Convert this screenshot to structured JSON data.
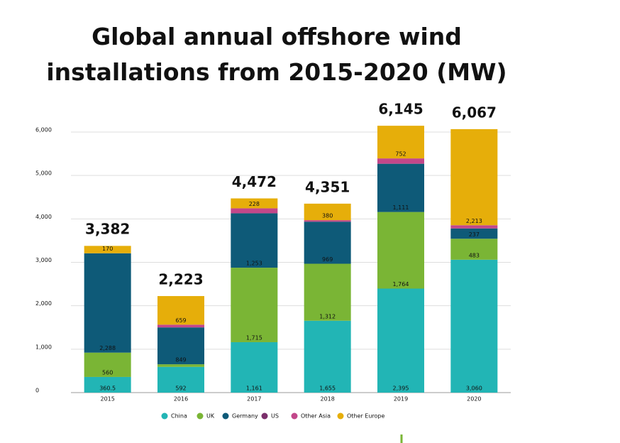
{
  "chart_data": {
    "type": "stacked_bar",
    "title": "Global annual offshore wind installations from 2015-2020 (MW)",
    "categories": [
      "2015",
      "2016",
      "2017",
      "2018",
      "2019",
      "2020"
    ],
    "series": [
      {
        "name": "China",
        "color": "#22b5b5",
        "values": [
          360.5,
          592,
          1161,
          1655,
          2395,
          3060
        ],
        "value_labels": [
          "360.5",
          "592",
          "1,161",
          "1,655",
          "2,395",
          "3,060"
        ]
      },
      {
        "name": "UK",
        "color": "#7ab535",
        "values": [
          560,
          60,
          1715,
          1312,
          1764,
          483
        ],
        "value_labels": [
          "560",
          null,
          "1,715",
          "1,312",
          "1,764",
          "483"
        ]
      },
      {
        "name": "Germany",
        "color": "#0e5a78",
        "values": [
          2288,
          849,
          1253,
          969,
          1111,
          237
        ],
        "value_labels": [
          "2,288",
          "849",
          "1,253",
          "969",
          "1,111",
          "237"
        ]
      },
      {
        "name": "US",
        "color": "#7b2f6b",
        "values": [
          null,
          null,
          null,
          null,
          null,
          null
        ]
      },
      {
        "name": "Other Asia",
        "color": "#c2478a",
        "values": [
          null,
          63,
          115,
          35,
          123,
          74
        ]
      },
      {
        "name": "Other Europe",
        "color": "#e6ae0a",
        "values": [
          170,
          659,
          228,
          380,
          752,
          2213
        ],
        "value_labels": [
          "170",
          "659",
          "228",
          "380",
          "752",
          "2,213"
        ]
      }
    ],
    "totals": [
      3382,
      2223,
      4472,
      4351,
      6145,
      6067
    ],
    "total_labels": [
      "3,382",
      "2,223",
      "4,472",
      "4,351",
      "6,145",
      "6,067"
    ],
    "ylim": [
      0,
      6000
    ],
    "yticks": [
      0,
      {
        "value": 1000,
        "label": "1,000"
      },
      {
        "value": 2000,
        "label": "2,000"
      },
      {
        "value": 3000,
        "label": "3,000"
      },
      {
        "value": 4000,
        "label": "4,000"
      },
      {
        "value": 5000,
        "label": "5,000"
      },
      {
        "value": 6000,
        "label": "6,000"
      }
    ],
    "grid": true,
    "legend": "bottom"
  }
}
